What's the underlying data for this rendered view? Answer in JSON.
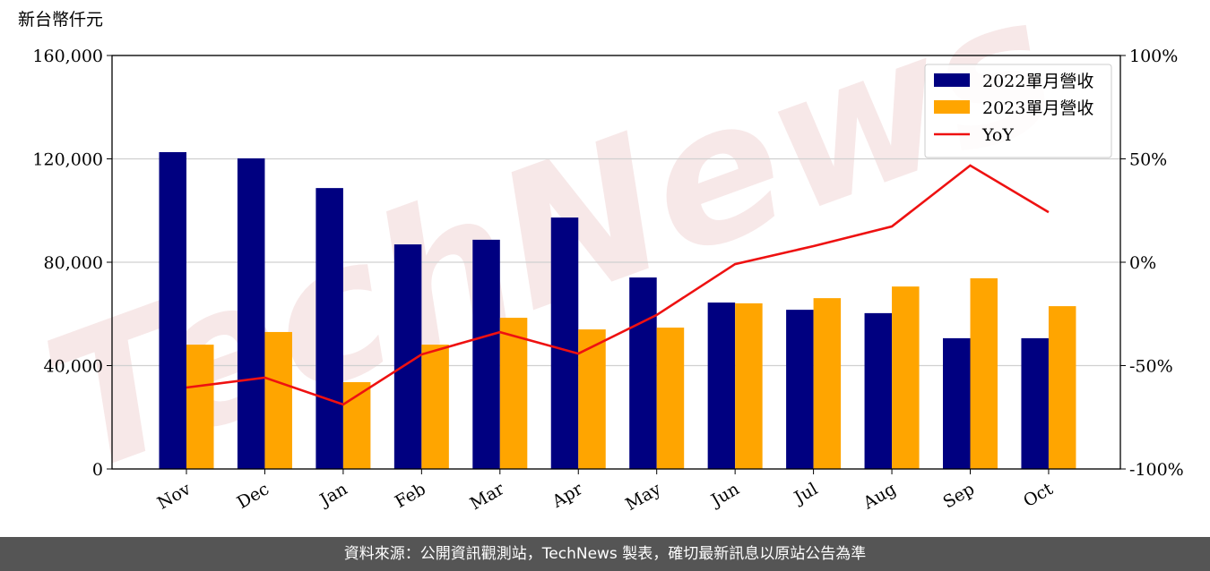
{
  "chart_data": {
    "type": "bar",
    "y_label": "新台幣仟元",
    "watermark": "TechNews",
    "source": "資料來源：公開資訊觀測站，TechNews 製表，確切最新訊息以原站公告為準",
    "categories": [
      "Nov",
      "Dec",
      "Jan",
      "Feb",
      "Mar",
      "Apr",
      "May",
      "Jun",
      "Jul",
      "Aug",
      "Sep",
      "Oct"
    ],
    "series": [
      {
        "name": "2022單月營收",
        "type": "bar",
        "color": "#000080",
        "values": [
          122600,
          120200,
          108700,
          86900,
          88700,
          97300,
          74100,
          64400,
          61600,
          60300,
          50600,
          50600
        ]
      },
      {
        "name": "2023單月營收",
        "type": "bar",
        "color": "#ffa500",
        "values": [
          48100,
          53000,
          33600,
          48100,
          58500,
          54000,
          54700,
          64100,
          66100,
          70600,
          73800,
          63000
        ]
      },
      {
        "name": "YoY",
        "type": "line",
        "axis": "y2",
        "color": "#ee1111",
        "values": [
          -60.6,
          -55.8,
          -68.8,
          -44.6,
          -33.8,
          -44.2,
          -25.5,
          -0.9,
          7.8,
          17.3,
          46.8,
          24.2
        ]
      }
    ],
    "ylim": [
      0,
      160000
    ],
    "yticks": [
      0,
      {
        "value": 40000,
        "label": "40,000"
      },
      {
        "value": 80000,
        "label": "80,000"
      },
      {
        "value": 120000,
        "label": "120,000"
      },
      {
        "value": 160000,
        "label": "160,000"
      }
    ],
    "y2lim": [
      -100,
      100
    ],
    "y2ticks": [
      {
        "value": -100,
        "label": "-100%"
      },
      {
        "value": -50,
        "label": "-50%"
      },
      {
        "value": 0,
        "label": "0%"
      },
      {
        "value": 50,
        "label": "50%"
      },
      {
        "value": 100,
        "label": "100%"
      }
    ],
    "grid": true,
    "legend": "upper right"
  }
}
